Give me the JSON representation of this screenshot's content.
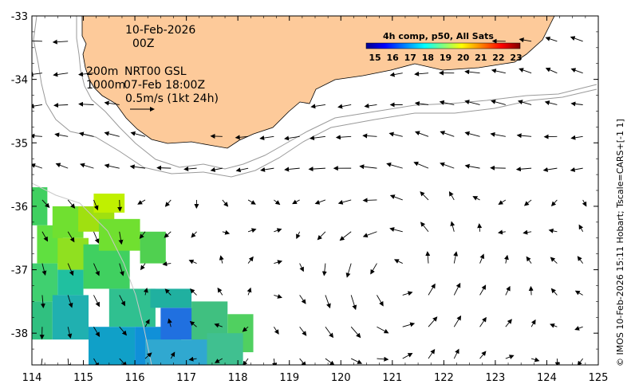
{
  "map": {
    "x_axis": {
      "min": 114,
      "max": 125,
      "ticks": [
        "114",
        "115",
        "116",
        "117",
        "118",
        "119",
        "120",
        "121",
        "122",
        "123",
        "124",
        "125"
      ]
    },
    "y_axis": {
      "min": -38.5,
      "max": -33,
      "ticks": [
        "-33",
        "-34",
        "-35",
        "-36",
        "-37",
        "-38"
      ]
    },
    "date": "10-Feb-2026",
    "time": "00Z",
    "contour_200": "200m",
    "product": "NRT00 GSL",
    "contour_1000": "1000m",
    "altimetry_time": "07-Feb 18:00Z",
    "scale_label": "0.5m/s (1kt 24h)",
    "colorbar": {
      "title": "4h comp, p50, All Sats",
      "labels": [
        "15",
        "16",
        "17",
        "18",
        "19",
        "20",
        "21",
        "22",
        "23"
      ],
      "colors": [
        "#00008f",
        "#0000ff",
        "#0080ff",
        "#00ffff",
        "#80ff80",
        "#ffff00",
        "#ff8000",
        "#ff0000",
        "#800000"
      ]
    },
    "credit": "© IMOS 10-Feb-2026 15:11 Hobart; Tscale=CARS+[-1 1]",
    "land_color": "#fdca9a",
    "sst_cells": [
      [
        114.0,
        -35.7,
        114.3,
        -36.3,
        "#40d060"
      ],
      [
        114.1,
        -36.3,
        114.6,
        -36.9,
        "#60e040"
      ],
      [
        114.0,
        -36.9,
        114.5,
        -37.5,
        "#40d070"
      ],
      [
        114.0,
        -37.5,
        114.4,
        -38.1,
        "#30c080"
      ],
      [
        114.4,
        -36.0,
        115.0,
        -36.5,
        "#70e030"
      ],
      [
        114.5,
        -36.5,
        115.1,
        -37.0,
        "#90e020"
      ],
      [
        114.9,
        -36.0,
        115.6,
        -36.4,
        "#a0e010"
      ],
      [
        115.2,
        -35.8,
        115.8,
        -36.1,
        "#c0f000"
      ],
      [
        114.5,
        -37.0,
        115.0,
        -37.4,
        "#20c0a0"
      ],
      [
        115.0,
        -36.6,
        115.9,
        -37.3,
        "#40d060"
      ],
      [
        115.3,
        -36.2,
        116.1,
        -36.7,
        "#70e030"
      ],
      [
        116.1,
        -36.4,
        116.6,
        -36.9,
        "#50d050"
      ],
      [
        115.5,
        -37.3,
        116.4,
        -37.9,
        "#30c090"
      ],
      [
        114.4,
        -37.4,
        115.1,
        -38.1,
        "#20b0b0"
      ],
      [
        115.1,
        -37.9,
        116.0,
        -38.5,
        "#10a0c8"
      ],
      [
        116.0,
        -37.9,
        116.9,
        -38.5,
        "#1090d8"
      ],
      [
        116.5,
        -37.6,
        117.3,
        -38.1,
        "#2070e0"
      ],
      [
        116.3,
        -37.3,
        117.1,
        -37.6,
        "#20b0a0"
      ],
      [
        117.1,
        -37.5,
        117.8,
        -38.2,
        "#40c080"
      ],
      [
        117.8,
        -37.7,
        118.3,
        -38.3,
        "#50d060"
      ],
      [
        116.2,
        -38.1,
        117.5,
        -38.5,
        "#30a8d0"
      ],
      [
        117.4,
        -38.0,
        118.1,
        -38.5,
        "#40c090"
      ]
    ]
  }
}
